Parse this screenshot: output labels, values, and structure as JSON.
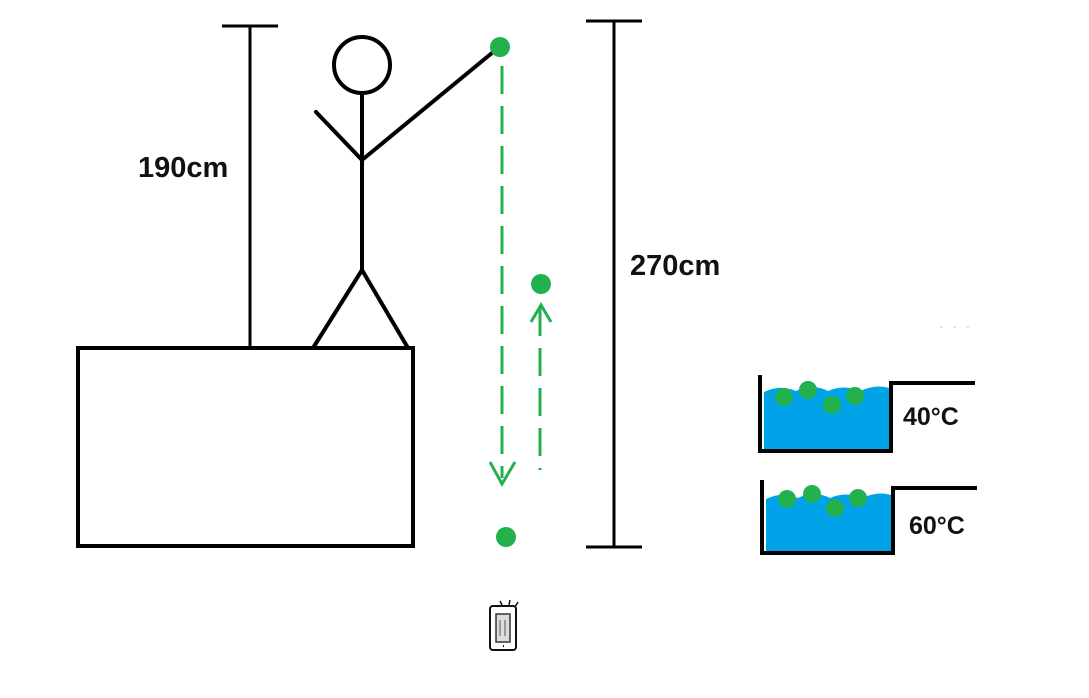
{
  "labels": {
    "person_height": "190cm",
    "drop_height": "270cm",
    "temp_top": "40°C",
    "temp_bottom": "60°C"
  },
  "colors": {
    "ball": "#22b14c",
    "water": "#00a2e8",
    "ink": "#000000"
  },
  "icons": {
    "phone": "phone-icon"
  }
}
